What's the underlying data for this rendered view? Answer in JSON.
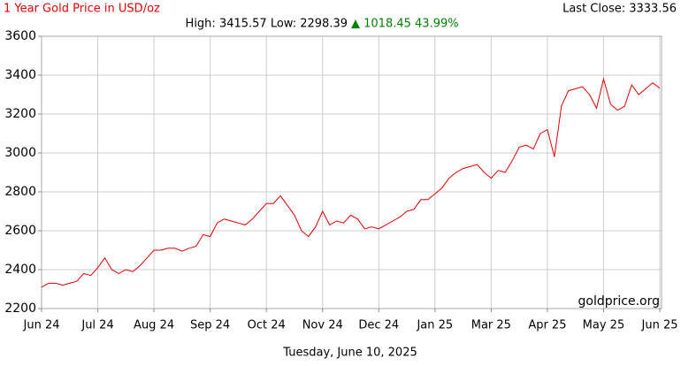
{
  "chart_data": {
    "type": "line",
    "title": "1 Year Gold Price in USD/oz",
    "stats": "High: 3415.57 Low: 2298.39",
    "change": "▲ 1018.45 43.99%",
    "last_close": "Last Close: 3333.56",
    "source": "goldprice.org",
    "date": "Tuesday, June 10, 2025",
    "color": "#e00000",
    "grid": true,
    "categories": [
      "Jun 24",
      null,
      null,
      null,
      null,
      null,
      null,
      null,
      "Jul 24",
      null,
      null,
      null,
      null,
      null,
      null,
      null,
      "Aug 24",
      null,
      null,
      null,
      null,
      null,
      null,
      null,
      "Sep 24",
      null,
      null,
      null,
      null,
      null,
      null,
      null,
      "Oct 24",
      null,
      null,
      null,
      null,
      null,
      null,
      null,
      "Nov 24",
      null,
      null,
      null,
      null,
      null,
      null,
      null,
      "Dec 24",
      null,
      null,
      null,
      null,
      null,
      null,
      null,
      "Jan 25",
      null,
      null,
      null,
      null,
      null,
      null,
      null,
      "Mar 25",
      null,
      null,
      null,
      null,
      null,
      null,
      null,
      "Apr 25",
      null,
      null,
      null,
      null,
      null,
      null,
      null,
      "May 25",
      null,
      null,
      null,
      null,
      null,
      null,
      null,
      "Jun 25"
    ],
    "values": [
      2310,
      2330,
      2330,
      2320,
      2330,
      2340,
      2380,
      2370,
      2410,
      2460,
      2400,
      2380,
      2400,
      2390,
      2420,
      2460,
      2500,
      2500,
      2510,
      2510,
      2495,
      2510,
      2520,
      2580,
      2570,
      2640,
      2660,
      2650,
      2640,
      2630,
      2660,
      2700,
      2740,
      2740,
      2780,
      2730,
      2680,
      2600,
      2570,
      2620,
      2700,
      2630,
      2650,
      2640,
      2680,
      2660,
      2610,
      2620,
      2610,
      2630,
      2650,
      2670,
      2700,
      2710,
      2760,
      2760,
      2790,
      2820,
      2870,
      2900,
      2920,
      2930,
      2940,
      2900,
      2870,
      2910,
      2900,
      2960,
      3030,
      3040,
      3020,
      3100,
      3120,
      2980,
      3240,
      3320,
      3330,
      3340,
      3300,
      3230,
      3380,
      3250,
      3220,
      3240,
      3350,
      3300,
      3330,
      3360,
      3333.56
    ],
    "ylim": [
      2200,
      3600
    ],
    "yticks": [
      2200,
      2400,
      2600,
      2800,
      3000,
      3200,
      3400,
      3600
    ]
  }
}
